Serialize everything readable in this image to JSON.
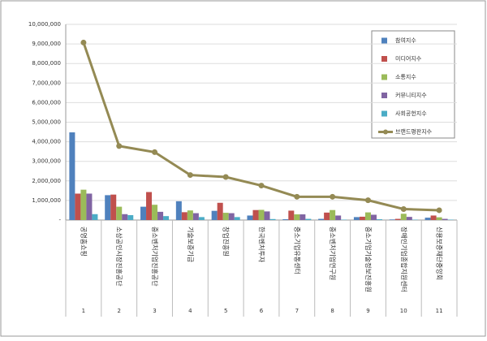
{
  "chart_data": {
    "type": "bar-line",
    "categories": [
      "공영홈쇼핑",
      "소상공인시장진흥공단",
      "중소벤처기업진흥공단",
      "기술보증기금",
      "창업진흥원",
      "한국벤처투자",
      "중소기업유통센터",
      "중소벤처기업연구원",
      "중소기업기술정보진흥원",
      "장애인기업종합지원센터",
      "신용보증재단중앙회"
    ],
    "category_numbers": [
      "1",
      "2",
      "3",
      "4",
      "5",
      "6",
      "7",
      "8",
      "9",
      "10",
      "11"
    ],
    "series": [
      {
        "name": "참여지수",
        "type": "bar",
        "color": "#4f81bd",
        "values": [
          4480000,
          1270000,
          680000,
          960000,
          470000,
          230000,
          40000,
          60000,
          150000,
          30000,
          120000
        ]
      },
      {
        "name": "미디어지수",
        "type": "bar",
        "color": "#c0504d",
        "values": [
          1350000,
          1300000,
          1430000,
          400000,
          880000,
          510000,
          480000,
          380000,
          170000,
          60000,
          230000
        ]
      },
      {
        "name": "소통지수",
        "type": "bar",
        "color": "#9bbb59",
        "values": [
          1550000,
          680000,
          780000,
          490000,
          370000,
          520000,
          290000,
          510000,
          390000,
          320000,
          140000
        ]
      },
      {
        "name": "커뮤니티지수",
        "type": "bar",
        "color": "#8064a2",
        "values": [
          1350000,
          300000,
          420000,
          350000,
          350000,
          440000,
          290000,
          230000,
          270000,
          160000,
          60000
        ]
      },
      {
        "name": "사회공헌지수",
        "type": "bar",
        "color": "#4bacc6",
        "values": [
          300000,
          250000,
          200000,
          150000,
          150000,
          50000,
          60000,
          20000,
          40000,
          20000,
          20000
        ]
      },
      {
        "name": "브랜드평판지수",
        "type": "line",
        "color": "#948a54",
        "values": [
          9070000,
          3780000,
          3470000,
          2300000,
          2200000,
          1760000,
          1190000,
          1190000,
          1010000,
          560000,
          500000
        ]
      }
    ],
    "ylim": [
      0,
      10000000
    ],
    "yticks": [
      {
        "value": 0,
        "label": "-"
      },
      {
        "value": 1000000,
        "label": "1,000,000"
      },
      {
        "value": 2000000,
        "label": "2,000,000"
      },
      {
        "value": 3000000,
        "label": "3,000,000"
      },
      {
        "value": 4000000,
        "label": "4,000,000"
      },
      {
        "value": 5000000,
        "label": "5,000,000"
      },
      {
        "value": 6000000,
        "label": "6,000,000"
      },
      {
        "value": 7000000,
        "label": "7,000,000"
      },
      {
        "value": 8000000,
        "label": "8,000,000"
      },
      {
        "value": 9000000,
        "label": "9,000,000"
      },
      {
        "value": 10000000,
        "label": "10,000,000"
      }
    ],
    "grid": true
  }
}
